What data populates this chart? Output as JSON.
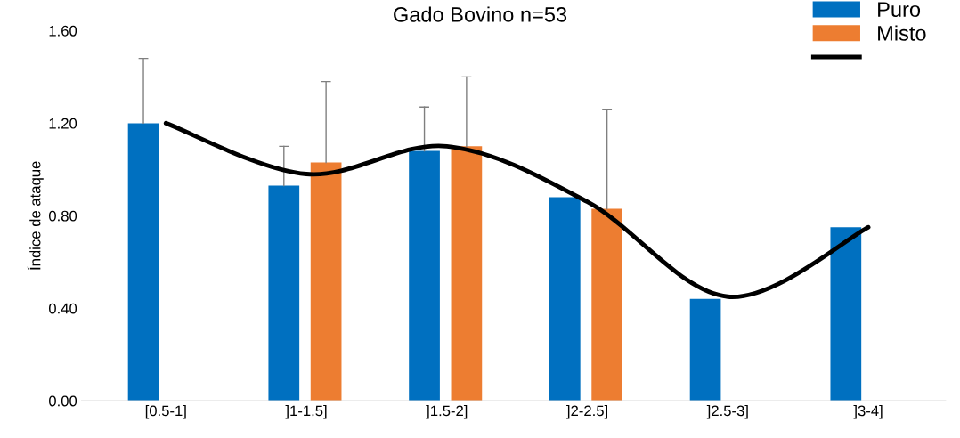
{
  "chart_data": {
    "type": "bar",
    "title": "Gado Bovino n=53",
    "ylabel": "Índice de ataque",
    "categories": [
      "[0.5-1]",
      "]1-1.5]",
      "]1.5-2]",
      "]2-2.5]",
      "]2.5-3]",
      "]3-4]"
    ],
    "series": [
      {
        "name": "Puro",
        "color": "#0070c0",
        "values": [
          1.2,
          0.93,
          1.08,
          0.88,
          0.44,
          0.75
        ],
        "errors": [
          [
            1.2,
            1.48
          ],
          [
            0.93,
            1.1
          ],
          [
            1.08,
            1.27
          ],
          null,
          null,
          null
        ]
      },
      {
        "name": "Misto",
        "color": "#ed7d31",
        "values": [
          null,
          1.03,
          1.1,
          0.83,
          null,
          null
        ],
        "errors": [
          null,
          [
            1.03,
            1.38
          ],
          [
            1.1,
            1.4
          ],
          [
            0.83,
            1.26
          ],
          null,
          null
        ]
      },
      {
        "type": "line",
        "color": "#000000",
        "values": [
          1.2,
          0.98,
          1.1,
          0.86,
          0.45,
          0.75
        ]
      }
    ],
    "ylim": [
      0,
      1.6
    ],
    "yticks": [
      {
        "value": 0,
        "label": "0.00"
      },
      {
        "value": 0.4,
        "label": "0.40"
      },
      {
        "value": 0.8,
        "label": "0.80"
      },
      {
        "value": 1.2,
        "label": "1.20"
      },
      {
        "value": 1.6,
        "label": "1.60"
      }
    ],
    "legend": "top right",
    "grid": false
  }
}
